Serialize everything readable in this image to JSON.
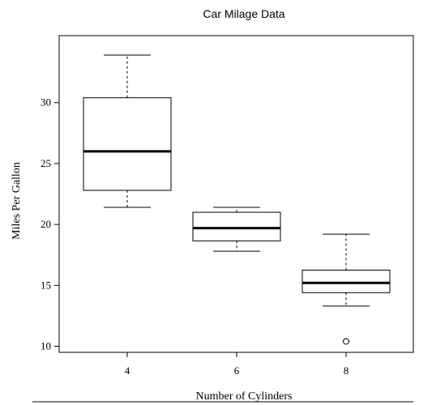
{
  "chart_data": {
    "type": "box",
    "title": "Car Milage Data",
    "xlabel": "Number of Cylinders",
    "ylabel": "Miles Per Gallon",
    "categories": [
      "4",
      "6",
      "8"
    ],
    "ylim": [
      9.5,
      35.5
    ],
    "yticks": [
      10,
      15,
      20,
      25,
      30
    ],
    "grid": false,
    "boxes": [
      {
        "category": "4",
        "whisker_low": 21.4,
        "q1": 22.8,
        "median": 26.0,
        "q3": 30.4,
        "whisker_high": 33.9,
        "outliers": []
      },
      {
        "category": "6",
        "whisker_low": 17.8,
        "q1": 18.65,
        "median": 19.7,
        "q3": 21.0,
        "whisker_high": 21.4,
        "outliers": []
      },
      {
        "category": "8",
        "whisker_low": 13.3,
        "q1": 14.4,
        "median": 15.2,
        "q3": 16.25,
        "whisker_high": 19.2,
        "outliers": [
          10.4
        ]
      }
    ]
  }
}
